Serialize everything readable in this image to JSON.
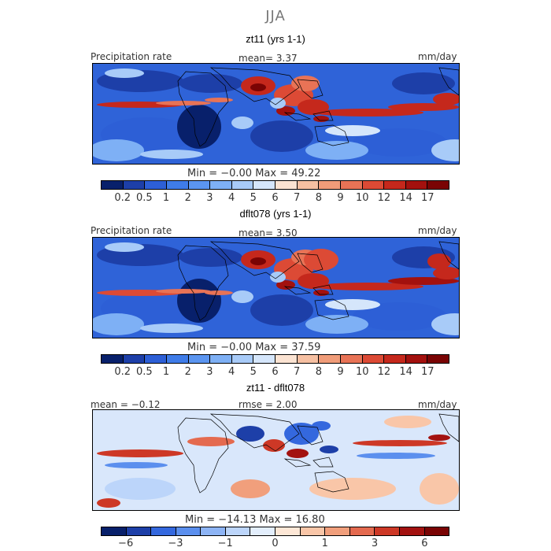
{
  "figure": {
    "season": "JJA"
  },
  "panels": [
    {
      "title": "zt11 (yrs 1-1)",
      "left_label": "Precipitation rate",
      "center_label": "mean=   3.37",
      "units": "mm/day",
      "minmax": "Min =  −0.00  Max =   49.22",
      "ticks": [
        "0.2",
        "0.5",
        "1",
        "2",
        "3",
        "4",
        "5",
        "6",
        "7",
        "8",
        "9",
        "10",
        "12",
        "14",
        "17"
      ],
      "variant": "a"
    },
    {
      "title": "dflt078 (yrs 1-1)",
      "left_label": "Precipitation rate",
      "center_label": "mean=   3.50",
      "units": "mm/day",
      "minmax": "Min =  −0.00  Max =   37.59",
      "ticks": [
        "0.2",
        "0.5",
        "1",
        "2",
        "3",
        "4",
        "5",
        "6",
        "7",
        "8",
        "9",
        "10",
        "12",
        "14",
        "17"
      ],
      "variant": "b"
    },
    {
      "title": "zt11 - dflt078",
      "left_label": "mean =  −0.12",
      "center_label": "rmse =    2.00",
      "units": "mm/day",
      "minmax": "Min = −14.13  Max =   16.80",
      "ticks": [
        "−6",
        "",
        "−3",
        "",
        "−1",
        "",
        "0",
        "",
        "1",
        "",
        "3",
        "",
        "6"
      ],
      "variant": "diff"
    }
  ],
  "colors": {
    "precip_scale": [
      "#08206b",
      "#1d3fa8",
      "#2d5fd6",
      "#3f7ce8",
      "#5b95f0",
      "#7eb0f5",
      "#a8cbf8",
      "#d5e6fb",
      "#fbe3d2",
      "#f6c0a2",
      "#f09c79",
      "#e87356",
      "#dc4a35",
      "#c5281c",
      "#a3110e",
      "#7a0404"
    ],
    "diff_scale": [
      "#08206b",
      "#1d3fa8",
      "#3468de",
      "#5b8fee",
      "#8db4f5",
      "#bcd5fa",
      "#e3eefc",
      "#fde7d6",
      "#f9c6a8",
      "#f19f7c",
      "#e46a4f",
      "#cd3826",
      "#a31210",
      "#7a0404"
    ],
    "background_precip": "#2f63d8",
    "background_diff": "#d9e7fb"
  },
  "chart_data": [
    {
      "type": "heatmap",
      "title": "zt11 (yrs 1-1)",
      "variable": "Precipitation rate",
      "units": "mm/day",
      "mean": 3.37,
      "min": -0.0,
      "max": 49.22,
      "levels": [
        0.2,
        0.5,
        1,
        2,
        3,
        4,
        5,
        6,
        7,
        8,
        9,
        10,
        12,
        14,
        17
      ]
    },
    {
      "type": "heatmap",
      "title": "dflt078 (yrs 1-1)",
      "variable": "Precipitation rate",
      "units": "mm/day",
      "mean": 3.5,
      "min": -0.0,
      "max": 37.59,
      "levels": [
        0.2,
        0.5,
        1,
        2,
        3,
        4,
        5,
        6,
        7,
        8,
        9,
        10,
        12,
        14,
        17
      ]
    },
    {
      "type": "heatmap",
      "title": "zt11 - dflt078",
      "units": "mm/day",
      "mean": -0.12,
      "rmse": 2.0,
      "min": -14.13,
      "max": 16.8,
      "levels": [
        -6,
        -3,
        -1,
        0,
        1,
        3,
        6
      ]
    }
  ]
}
